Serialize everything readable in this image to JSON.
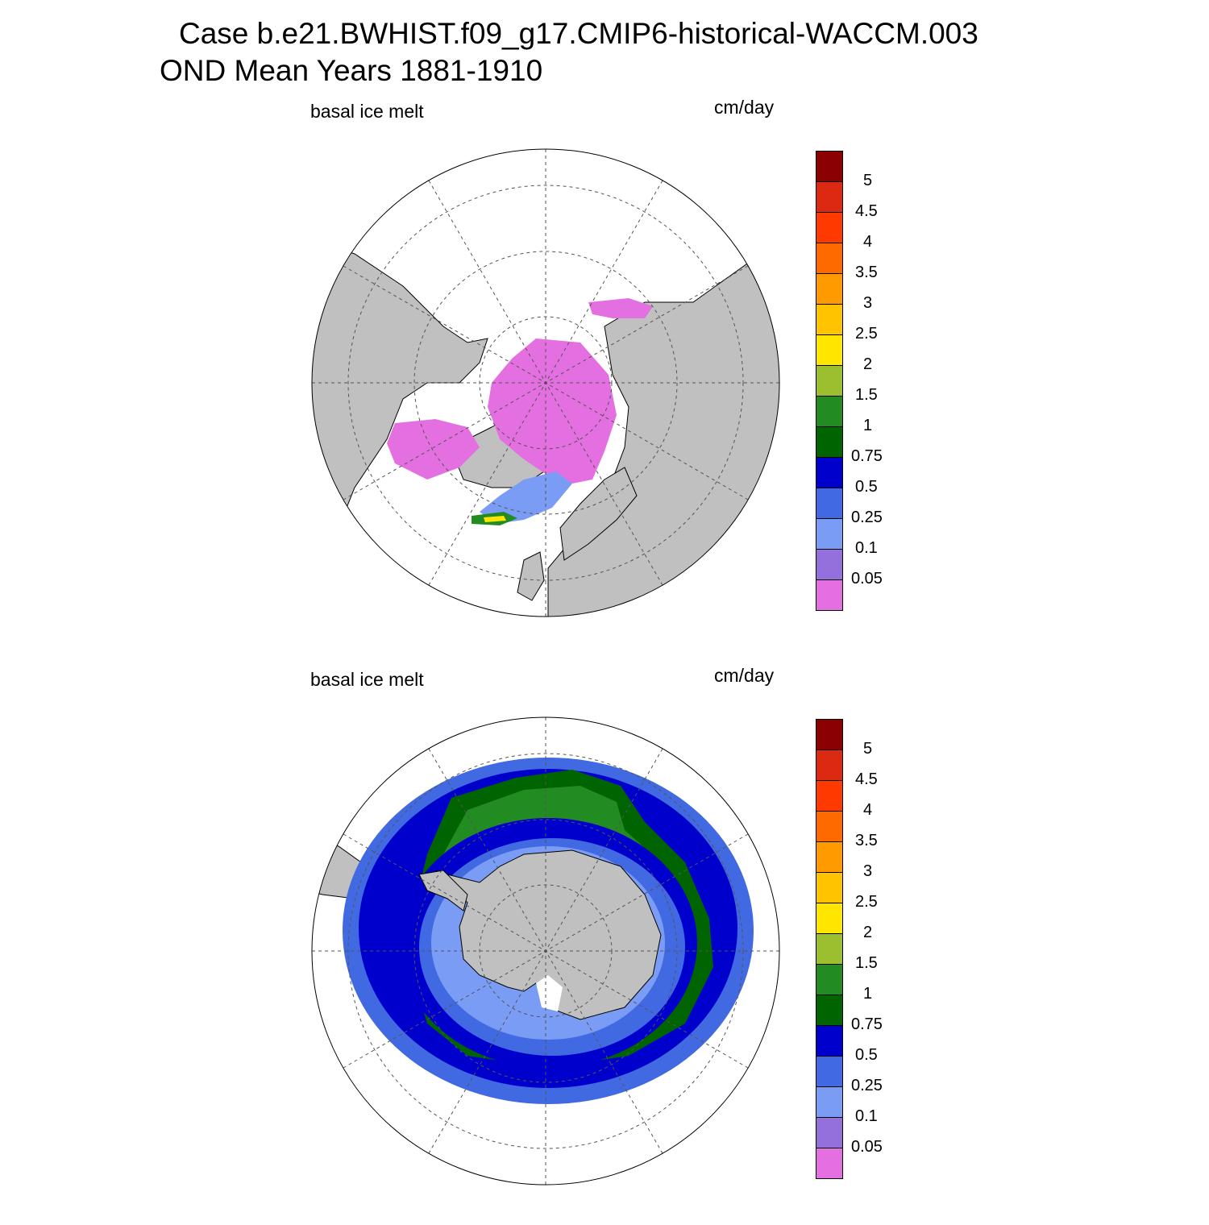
{
  "title": {
    "line1": "Case b.e21.BWHIST.f09_g17.CMIP6-historical-WACCM.003",
    "line2": "OND Mean   Years 1881-1910"
  },
  "panels": [
    {
      "id": "north",
      "variable_label": "basal ice melt",
      "units_label": "cm/day",
      "hemisphere": "north"
    },
    {
      "id": "south",
      "variable_label": "basal ice melt",
      "units_label": "cm/day",
      "hemisphere": "south"
    }
  ],
  "colorbar": {
    "labels": [
      "5",
      "4.5",
      "4",
      "3.5",
      "3",
      "2.5",
      "2",
      "1.5",
      "1",
      "0.75",
      "0.5",
      "0.25",
      "0.1",
      "0.05"
    ],
    "colors": [
      "#8b0000",
      "#dc2a12",
      "#ff3a00",
      "#ff6a00",
      "#ff9a00",
      "#ffc300",
      "#ffe600",
      "#9bbf2f",
      "#228b22",
      "#006400",
      "#0000cd",
      "#4169e1",
      "#7a9cf5",
      "#9370db",
      "#e46fe0"
    ]
  },
  "map_colors": {
    "land": "#c0c0c0",
    "ocean": "#ffffff",
    "grid": "#555555"
  }
}
